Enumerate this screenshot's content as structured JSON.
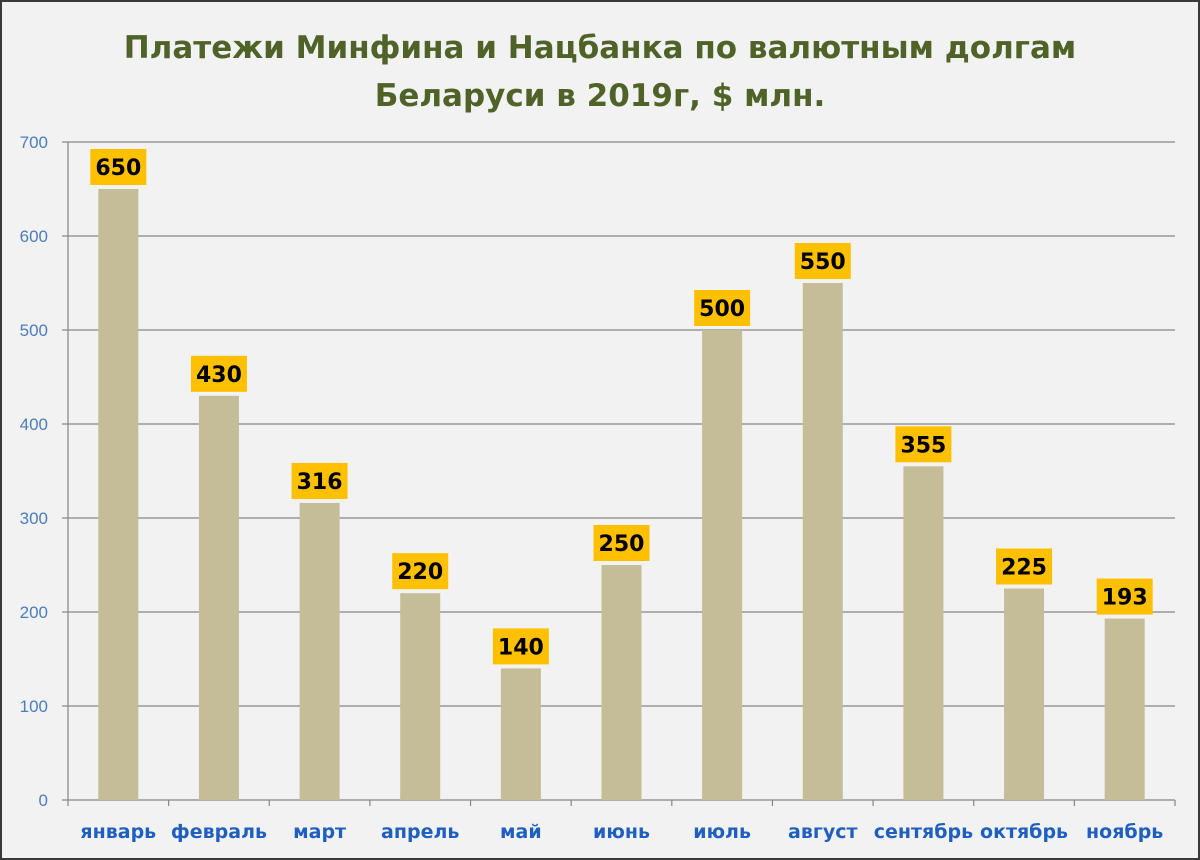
{
  "chart_data": {
    "type": "bar",
    "title_line1": "Платежи Минфина и Нацбанка по валютным долгам",
    "title_line2": "Беларуси в 2019г, $ млн.",
    "categories": [
      "январь",
      "февраль",
      "март",
      "апрель",
      "май",
      "июнь",
      "июль",
      "август",
      "сентябрь",
      "октябрь",
      "ноябрь"
    ],
    "values": [
      650,
      430,
      316,
      220,
      140,
      250,
      500,
      550,
      355,
      225,
      193
    ],
    "data_labels": [
      "650",
      "430",
      "316",
      "220",
      "140",
      "250",
      "500",
      "550",
      "355",
      "225",
      "193"
    ],
    "yticks": [
      0,
      100,
      200,
      300,
      400,
      500,
      600,
      700
    ],
    "ytick_labels": [
      "0",
      "100",
      "200",
      "300",
      "400",
      "500",
      "600",
      "700"
    ],
    "ylim": [
      0,
      700
    ],
    "grid": true,
    "colors": {
      "bar": "#c4bd97",
      "label_bg": "#ffc000",
      "title": "#4f6228",
      "axis_text": "#4a7ebb",
      "gridline": "#868686",
      "plot_bg": "#f2f2f2"
    }
  }
}
